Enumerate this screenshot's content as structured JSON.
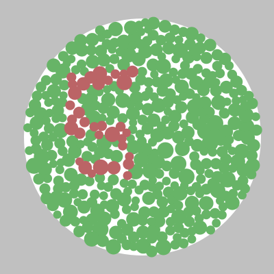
{
  "plate": {
    "background_color": "#c0c0c0",
    "plate_color": "#ffffff",
    "dot_colors": {
      "figure": "#bb6466",
      "ground": "#67b467"
    },
    "hidden_figure": "5"
  }
}
